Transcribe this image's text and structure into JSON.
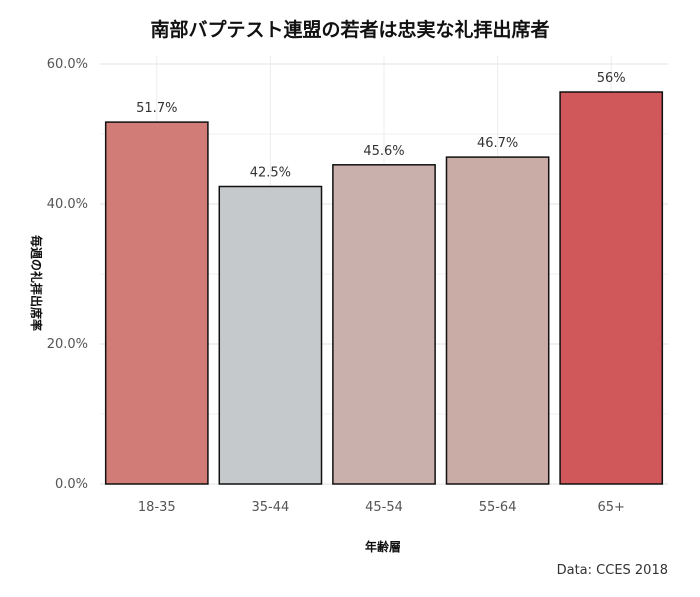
{
  "chart_data": {
    "type": "bar",
    "title": "南部バプテスト連盟の若者は忠実な礼拝出席者",
    "xlabel": "年齢層",
    "ylabel": "毎週の礼拝出席率",
    "categories": [
      "18-35",
      "35-44",
      "45-54",
      "55-64",
      "65+"
    ],
    "values": [
      51.7,
      42.5,
      45.6,
      46.7,
      56
    ],
    "value_labels": [
      "51.7%",
      "42.5%",
      "45.6%",
      "46.7%",
      "56%"
    ],
    "colors": [
      "#d27c78",
      "#c5c9cb",
      "#c9b0ac",
      "#c9aca6",
      "#d0575a"
    ],
    "ylim": [
      0,
      60
    ],
    "yticks": [
      0,
      20,
      40,
      60
    ],
    "ytick_labels": [
      "0.0%",
      "20.0%",
      "40.0%",
      "60.0%"
    ],
    "grid": true,
    "caption": "Data: CCES 2018"
  }
}
